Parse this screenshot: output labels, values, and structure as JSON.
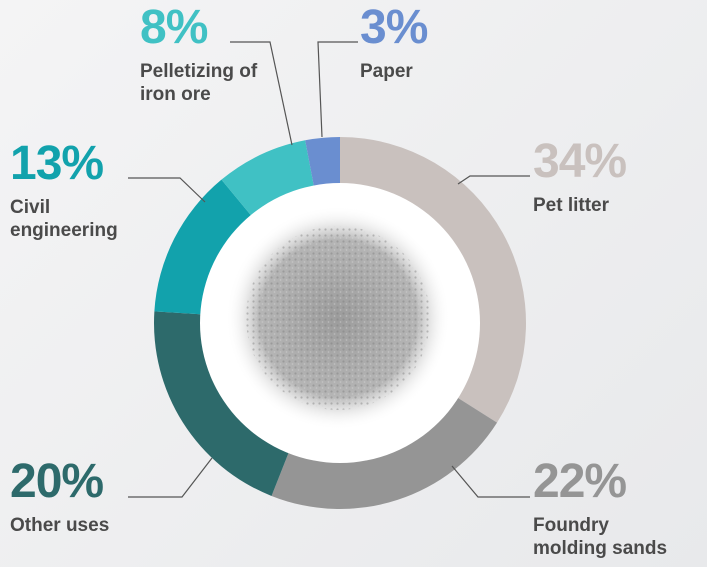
{
  "chart_data": {
    "type": "donut",
    "categories": [
      "Pet litter",
      "Foundry molding sands",
      "Other uses",
      "Civil engineering",
      "Pelletizing of iron ore",
      "Paper"
    ],
    "values": [
      34,
      22,
      20,
      13,
      8,
      3
    ],
    "value_labels": [
      "34%",
      "22%",
      "20%",
      "13%",
      "8%",
      "3%"
    ],
    "colors": [
      "#c9c1be",
      "#959595",
      "#2d6a6b",
      "#12a2ac",
      "#40c1c4",
      "#6a8ed0"
    ]
  }
}
